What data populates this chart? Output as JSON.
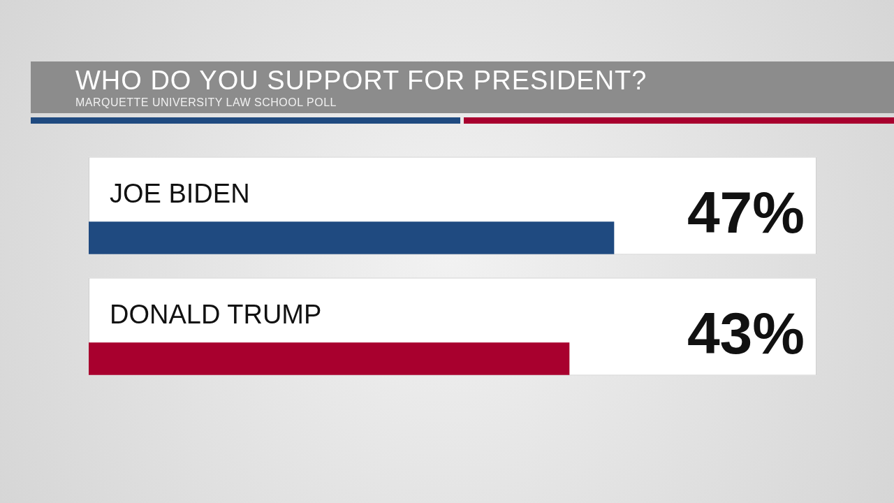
{
  "chart_data": {
    "type": "bar",
    "orientation": "horizontal",
    "title": "WHO DO YOU SUPPORT FOR PRESIDENT?",
    "subtitle": "MARQUETTE UNIVERSITY LAW SCHOOL POLL",
    "categories": [
      "JOE BIDEN",
      "DONALD TRUMP"
    ],
    "values": [
      47,
      43
    ],
    "colors": [
      "#1f4a80",
      "#a8002e"
    ],
    "value_labels": [
      "47%",
      "43%"
    ],
    "legend": false
  }
}
